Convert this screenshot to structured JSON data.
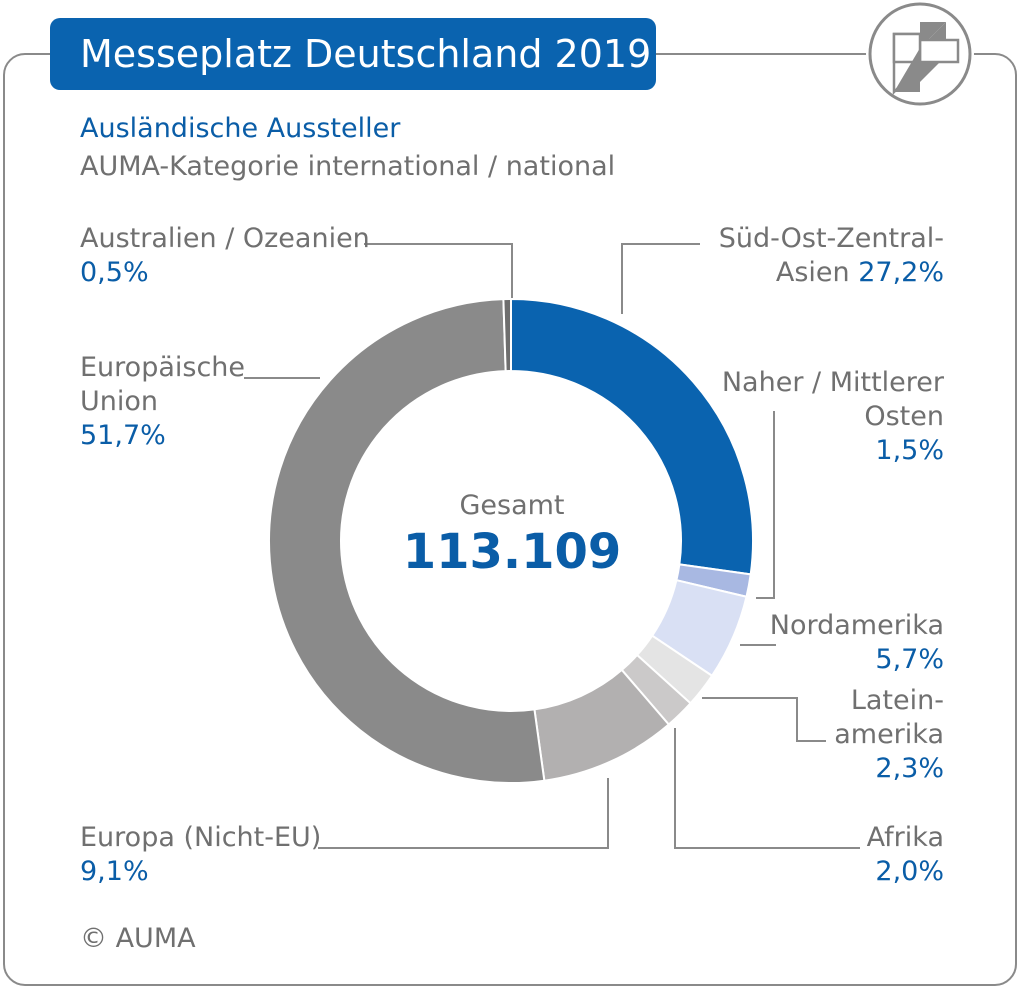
{
  "header": {
    "title": "Messeplatz Deutschland 2019"
  },
  "subtitle": {
    "line1": "Ausländische Aussteller",
    "line2": "AUMA-Kategorie international / national"
  },
  "center": {
    "label": "Gesamt",
    "value": "113.109"
  },
  "copyright": "© AUMA",
  "logo": {
    "icon": "auma-logo-icon"
  },
  "chart_data": {
    "type": "pie",
    "subtype": "donut",
    "total": 113109,
    "slices": [
      {
        "name": "Süd-Ost-Zentral-Asien",
        "value": 27.2,
        "label_lines": [
          "Süd-Ost-Zentral-",
          "Asien"
        ],
        "value_text": "27,2%",
        "color": "#0a63af"
      },
      {
        "name": "Naher / Mittlerer Osten",
        "value": 1.5,
        "label_lines": [
          "Naher / Mittlerer",
          "Osten"
        ],
        "value_text": "1,5%",
        "color": "#a8b8e2"
      },
      {
        "name": "Nordamerika",
        "value": 5.7,
        "label_lines": [
          "Nordamerika"
        ],
        "value_text": "5,7%",
        "color": "#d9e0f4"
      },
      {
        "name": "Lateinamerika",
        "value": 2.3,
        "label_lines": [
          "Latein-",
          "amerika"
        ],
        "value_text": "2,3%",
        "color": "#e4e4e4"
      },
      {
        "name": "Afrika",
        "value": 2.0,
        "label_lines": [
          "Afrika"
        ],
        "value_text": "2,0%",
        "color": "#cbc9c9"
      },
      {
        "name": "Europa (Nicht-EU)",
        "value": 9.1,
        "label_lines": [
          "Europa (Nicht-EU)"
        ],
        "value_text": "9,1%",
        "color": "#b2b0b0"
      },
      {
        "name": "Europäische Union",
        "value": 51.7,
        "label_lines": [
          "Europäische",
          "Union"
        ],
        "value_text": "51,7%",
        "color": "#8a8a8a"
      },
      {
        "name": "Australien / Ozeanien",
        "value": 0.5,
        "label_lines": [
          "Australien / Ozeanien"
        ],
        "value_text": "0,5%",
        "color": "#6e6e6e"
      }
    ]
  }
}
